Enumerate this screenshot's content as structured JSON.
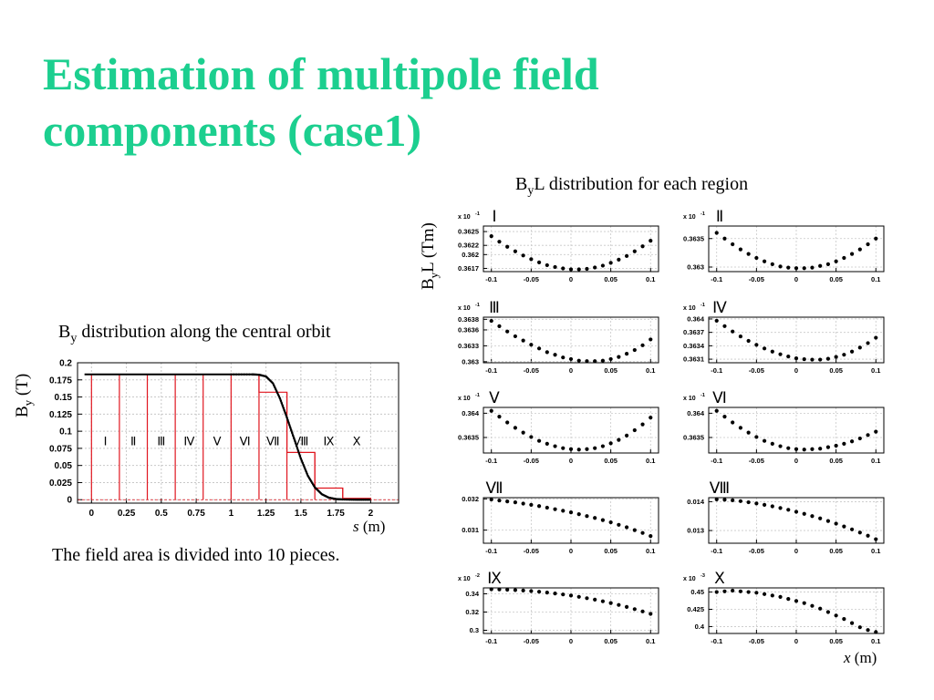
{
  "slide": {
    "title": "Estimation of multipole field components (case1)",
    "main_caption": "The field area is divided into 10 pieces."
  },
  "colors": {
    "title": "#1ccf8f",
    "regions": "#e0161f",
    "curve": "#000000"
  },
  "chart_data": [
    {
      "type": "line",
      "heading_main": "B",
      "heading_sub": "y",
      "heading_rest": " distribution along the central orbit",
      "ylabel_main": "B",
      "ylabel_sub": "y",
      "ylabel_rest": " (T)",
      "xlabel_var": "s",
      "xlabel_unit": " (m)",
      "xlim": [
        -0.1,
        2.2
      ],
      "ylim": [
        -0.005,
        0.2
      ],
      "xticks": [
        0,
        0.25,
        0.5,
        0.75,
        1,
        1.25,
        1.5,
        1.75,
        2
      ],
      "xtick_labels": [
        "0",
        "0.25",
        "0.5",
        "0.75",
        "1",
        "1.25",
        "1.5",
        "1.75",
        "2"
      ],
      "yticks": [
        0,
        0.025,
        0.05,
        0.075,
        0.1,
        0.125,
        0.15,
        0.175,
        0.2
      ],
      "ytick_labels": [
        "0",
        "0.025",
        "0.05",
        "0.075",
        "0.1",
        "0.125",
        "0.15",
        "0.175",
        "0.2"
      ],
      "grid": true,
      "curve": {
        "x": [
          -0.05,
          0,
          0.25,
          0.5,
          0.75,
          1,
          1.15,
          1.2,
          1.25,
          1.3,
          1.35,
          1.4,
          1.45,
          1.5,
          1.55,
          1.6,
          1.65,
          1.7,
          1.75,
          1.8,
          1.9,
          2.0
        ],
        "y": [
          0.183,
          0.183,
          0.183,
          0.183,
          0.183,
          0.183,
          0.183,
          0.1825,
          0.18,
          0.17,
          0.148,
          0.12,
          0.09,
          0.06,
          0.035,
          0.018,
          0.008,
          0.003,
          0.001,
          0.0003,
          0.0,
          0.0
        ]
      },
      "regions": {
        "labels": [
          "I",
          "II",
          "III",
          "IV",
          "V",
          "VI",
          "VII",
          "VIII",
          "IX",
          "X"
        ],
        "edges": [
          0,
          0.2,
          0.4,
          0.6,
          0.8,
          1.0,
          1.2,
          1.4,
          1.6,
          1.8,
          2.0
        ],
        "values": [
          0.183,
          0.183,
          0.183,
          0.183,
          0.183,
          0.183,
          0.157,
          0.069,
          0.017,
          0.002
        ]
      }
    },
    {
      "type": "scatter",
      "heading_main": "B",
      "heading_sub": "y",
      "heading_rest": "L distribution for each region",
      "ylabel_main": "B",
      "ylabel_sub": "y",
      "ylabel_rest": "L (Tm)",
      "xlabel_var": "x",
      "xlabel_unit": " (m)",
      "xlim": [
        -0.11,
        0.11
      ],
      "xticks": [
        -0.1,
        -0.05,
        0,
        0.05,
        0.1
      ],
      "xtick_labels": [
        "-0.1",
        "-0.05",
        "0",
        "0.05",
        "0.1"
      ],
      "x": [
        -0.1,
        -0.09,
        -0.08,
        -0.07,
        -0.06,
        -0.05,
        -0.04,
        -0.03,
        -0.02,
        -0.01,
        0,
        0.01,
        0.02,
        0.03,
        0.04,
        0.05,
        0.06,
        0.07,
        0.08,
        0.09,
        0.1
      ],
      "panels": [
        {
          "name": "I",
          "scale": "x 10",
          "scale_exp": "-1",
          "ylim": [
            0.36163,
            0.36262
          ],
          "ytick_values": [
            0.3617,
            0.362,
            0.3622,
            0.3625
          ],
          "ytick_labels": [
            "0.3617",
            "0.362",
            "0.3622",
            "0.3625"
          ],
          "y": [
            0.3624,
            0.36228,
            0.36217,
            0.36207,
            0.36198,
            0.3619,
            0.36183,
            0.36177,
            0.36173,
            0.3617,
            0.36168,
            0.36168,
            0.36169,
            0.36172,
            0.36176,
            0.36182,
            0.36189,
            0.36197,
            0.36207,
            0.36218,
            0.3623
          ]
        },
        {
          "name": "II",
          "scale": "x 10",
          "scale_exp": "-1",
          "ylim": [
            0.36292,
            0.36372
          ],
          "ytick_values": [
            0.363,
            0.3635
          ],
          "ytick_labels": [
            "0.363",
            "0.3635"
          ],
          "y": [
            0.3636,
            0.3635,
            0.3634,
            0.36331,
            0.36323,
            0.36316,
            0.3631,
            0.36305,
            0.36301,
            0.36299,
            0.36298,
            0.36298,
            0.36299,
            0.36302,
            0.36305,
            0.3631,
            0.36316,
            0.36323,
            0.36331,
            0.3634,
            0.3635
          ]
        },
        {
          "name": "III",
          "scale": "x 10",
          "scale_exp": "-1",
          "ylim": [
            0.36298,
            0.36384
          ],
          "ytick_values": [
            0.363,
            0.3633,
            0.3636,
            0.3638
          ],
          "ytick_labels": [
            "0.363",
            "0.3633",
            "0.3636",
            "0.3638"
          ],
          "y": [
            0.36377,
            0.36367,
            0.36357,
            0.36348,
            0.3634,
            0.36332,
            0.36325,
            0.36318,
            0.36313,
            0.36308,
            0.36305,
            0.36302,
            0.36301,
            0.36301,
            0.36302,
            0.36305,
            0.36309,
            0.36315,
            0.36322,
            0.36331,
            0.36342
          ]
        },
        {
          "name": "IV",
          "scale": "x 10",
          "scale_exp": "-1",
          "ylim": [
            0.36302,
            0.36404
          ],
          "ytick_values": [
            0.3631,
            0.3634,
            0.3637,
            0.364
          ],
          "ytick_labels": [
            "0.3631",
            "0.3634",
            "0.3637",
            "0.364"
          ],
          "y": [
            0.36396,
            0.36384,
            0.36372,
            0.36361,
            0.36351,
            0.36342,
            0.36334,
            0.36327,
            0.36321,
            0.36316,
            0.36312,
            0.3631,
            0.36309,
            0.36309,
            0.36311,
            0.36315,
            0.3632,
            0.36327,
            0.36336,
            0.36346,
            0.36358
          ]
        },
        {
          "name": "V",
          "scale": "x 10",
          "scale_exp": "-1",
          "ylim": [
            0.36318,
            0.36412
          ],
          "ytick_values": [
            0.3635,
            0.364
          ],
          "ytick_labels": [
            "0.3635",
            "0.364"
          ],
          "y": [
            0.36405,
            0.36393,
            0.36381,
            0.3637,
            0.3636,
            0.36351,
            0.36343,
            0.36337,
            0.36332,
            0.36328,
            0.36326,
            0.36325,
            0.36326,
            0.36328,
            0.36332,
            0.36338,
            0.36345,
            0.36354,
            0.36365,
            0.36377,
            0.36391
          ]
        },
        {
          "name": "VI",
          "scale": "x 10",
          "scale_exp": "-1",
          "ylim": [
            0.36318,
            0.36412
          ],
          "ytick_values": [
            0.3635,
            0.364
          ],
          "ytick_labels": [
            "0.3635",
            "0.364"
          ],
          "y": [
            0.36405,
            0.36393,
            0.36381,
            0.3637,
            0.3636,
            0.36351,
            0.36343,
            0.36337,
            0.36332,
            0.36328,
            0.36326,
            0.36325,
            0.36326,
            0.36327,
            0.3633,
            0.36333,
            0.36337,
            0.36342,
            0.36348,
            0.36355,
            0.36362
          ]
        },
        {
          "name": "VII",
          "scale": "",
          "scale_exp": "",
          "ylim": [
            0.03058,
            0.03204
          ],
          "ytick_values": [
            0.031,
            0.032
          ],
          "ytick_labels": [
            "0.031",
            "0.032"
          ],
          "y": [
            0.03198,
            0.03195,
            0.03192,
            0.03189,
            0.03185,
            0.03181,
            0.03177,
            0.03172,
            0.03167,
            0.03162,
            0.03157,
            0.03151,
            0.03145,
            0.03139,
            0.03132,
            0.03125,
            0.03117,
            0.03109,
            0.031,
            0.03091,
            0.03081
          ]
        },
        {
          "name": "VIII",
          "scale": "",
          "scale_exp": "",
          "ylim": [
            0.01256,
            0.01414
          ],
          "ytick_values": [
            0.013,
            0.014
          ],
          "ytick_labels": [
            "0.013",
            "0.014"
          ],
          "y": [
            0.01408,
            0.01407,
            0.01405,
            0.01402,
            0.01398,
            0.01394,
            0.01389,
            0.01384,
            0.01378,
            0.01372,
            0.01365,
            0.01358,
            0.0135,
            0.01342,
            0.01333,
            0.01324,
            0.01314,
            0.01304,
            0.01293,
            0.01282,
            0.0127
          ]
        },
        {
          "name": "IX",
          "scale": "x 10",
          "scale_exp": "-2",
          "ylim": [
            0.2965,
            0.3465
          ],
          "ytick_values": [
            0.3,
            0.32,
            0.34
          ],
          "ytick_labels": [
            "0.3",
            "0.32",
            "0.34"
          ],
          "y": [
            0.345,
            0.3448,
            0.3445,
            0.3441,
            0.3436,
            0.343,
            0.3423,
            0.3414,
            0.3404,
            0.3393,
            0.3381,
            0.3367,
            0.3352,
            0.3336,
            0.3318,
            0.3299,
            0.3278,
            0.3256,
            0.3232,
            0.3207,
            0.318
          ]
        },
        {
          "name": "X",
          "scale": "x 10",
          "scale_exp": "-3",
          "ylim": [
            0.39,
            0.456
          ],
          "ytick_values": [
            0.4,
            0.425,
            0.45
          ],
          "ytick_labels": [
            "0.4",
            "0.425",
            "0.45"
          ],
          "y": [
            0.45,
            0.451,
            0.452,
            0.451,
            0.45,
            0.449,
            0.447,
            0.445,
            0.443,
            0.44,
            0.437,
            0.434,
            0.43,
            0.426,
            0.421,
            0.416,
            0.411,
            0.405,
            0.399,
            0.395,
            0.392
          ]
        }
      ],
      "panel_labels": [
        "Ⅰ",
        "Ⅱ",
        "Ⅲ",
        "Ⅳ",
        "Ⅴ",
        "Ⅵ",
        "Ⅶ",
        "Ⅷ",
        "Ⅸ",
        "Ⅹ"
      ]
    }
  ]
}
